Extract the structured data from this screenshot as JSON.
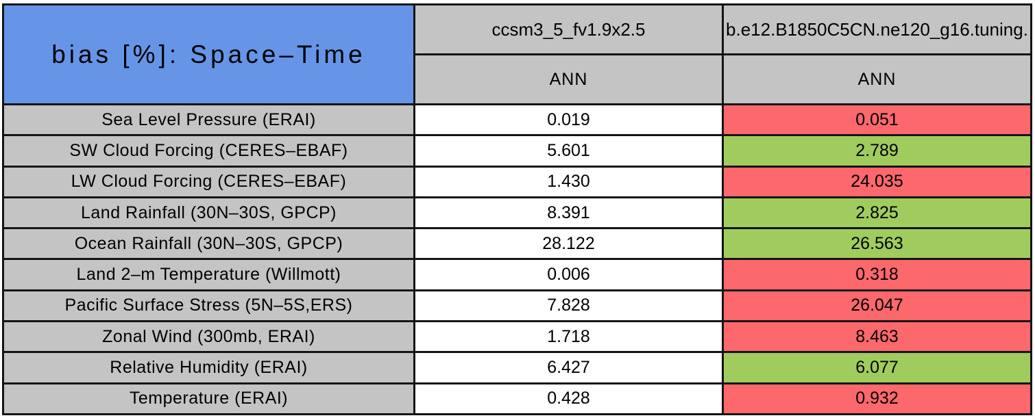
{
  "table": {
    "title": "bias [%]: Space–Time",
    "columns": [
      {
        "model": "ccsm3_5_fv1.9x2.5",
        "season": "ANN"
      },
      {
        "model": "b.e12.B1850C5CN.ne120_g16.tuning.",
        "season": "ANN"
      }
    ],
    "rows": [
      {
        "label": "Sea Level Pressure (ERAI)",
        "values": [
          "0.019",
          "0.051"
        ],
        "highlight": "red"
      },
      {
        "label": "SW Cloud Forcing (CERES–EBAF)",
        "values": [
          "5.601",
          "2.789"
        ],
        "highlight": "green"
      },
      {
        "label": "LW Cloud Forcing (CERES–EBAF)",
        "values": [
          "1.430",
          "24.035"
        ],
        "highlight": "red"
      },
      {
        "label": "Land Rainfall (30N–30S, GPCP)",
        "values": [
          "8.391",
          "2.825"
        ],
        "highlight": "green"
      },
      {
        "label": "Ocean Rainfall (30N–30S, GPCP)",
        "values": [
          "28.122",
          "26.563"
        ],
        "highlight": "green"
      },
      {
        "label": "Land 2–m Temperature (Willmott)",
        "values": [
          "0.006",
          "0.318"
        ],
        "highlight": "red"
      },
      {
        "label": "Pacific Surface Stress (5N–5S,ERS)",
        "values": [
          "7.828",
          "26.047"
        ],
        "highlight": "red"
      },
      {
        "label": "Zonal Wind (300mb, ERAI)",
        "values": [
          "1.718",
          "8.463"
        ],
        "highlight": "red"
      },
      {
        "label": "Relative Humidity (ERAI)",
        "values": [
          "6.427",
          "6.077"
        ],
        "highlight": "green"
      },
      {
        "label": "Temperature (ERAI)",
        "values": [
          "0.428",
          "0.932"
        ],
        "highlight": "red"
      }
    ],
    "colors": {
      "title_blue": "#6695e8",
      "header_gray": "#c4c4c4",
      "better_green": "#a0cc5e",
      "worse_red": "#fc686c",
      "grid_line": "#141414"
    }
  }
}
